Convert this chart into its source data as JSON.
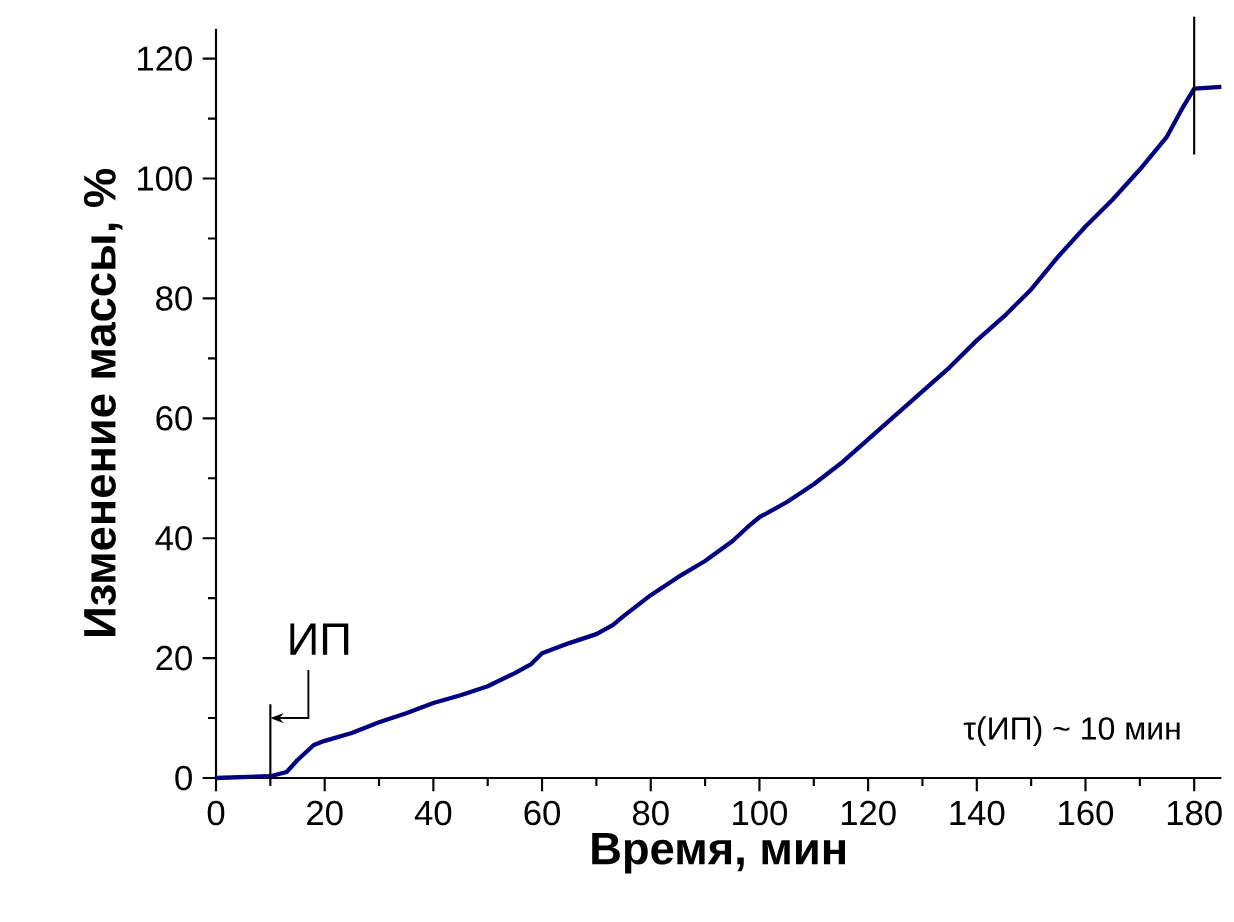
{
  "chart_data": {
    "type": "line",
    "xlabel": "Время, мин",
    "ylabel": "Изменение массы, %",
    "x": [
      0,
      10,
      13,
      15,
      18,
      20,
      25,
      30,
      35,
      40,
      45,
      50,
      55,
      58,
      60,
      65,
      70,
      73,
      75,
      80,
      85,
      90,
      95,
      98,
      100,
      105,
      110,
      115,
      120,
      125,
      130,
      135,
      140,
      145,
      150,
      155,
      160,
      165,
      170,
      175,
      178,
      180,
      185
    ],
    "series": [
      {
        "color": "#000080",
        "values": [
          0,
          0.3,
          1,
          3,
          5.5,
          6.2,
          7.5,
          9.3,
          10.8,
          12.5,
          13.8,
          15.3,
          17.5,
          19,
          20.8,
          22.5,
          24,
          25.5,
          27,
          30.5,
          33.5,
          36.2,
          39.5,
          42,
          43.5,
          46,
          49,
          52.5,
          56.5,
          60.5,
          64.5,
          68.5,
          73,
          77,
          81.5,
          87,
          92,
          96.5,
          101.5,
          107,
          112,
          115,
          115.3
        ]
      }
    ],
    "xlim": [
      0,
      185
    ],
    "ylim": [
      0,
      125
    ],
    "xticks": [
      0,
      20,
      40,
      60,
      80,
      100,
      120,
      140,
      160,
      180
    ],
    "yticks": [
      0,
      20,
      40,
      60,
      80,
      100,
      120
    ],
    "ref_lines": [
      {
        "axis": "x",
        "value": 10,
        "label": "ИП"
      },
      {
        "axis": "x",
        "value": 180
      }
    ],
    "annotations": [
      "τ(ИП) ~ 10 мин"
    ],
    "marker": "none",
    "line_style": "solid"
  }
}
